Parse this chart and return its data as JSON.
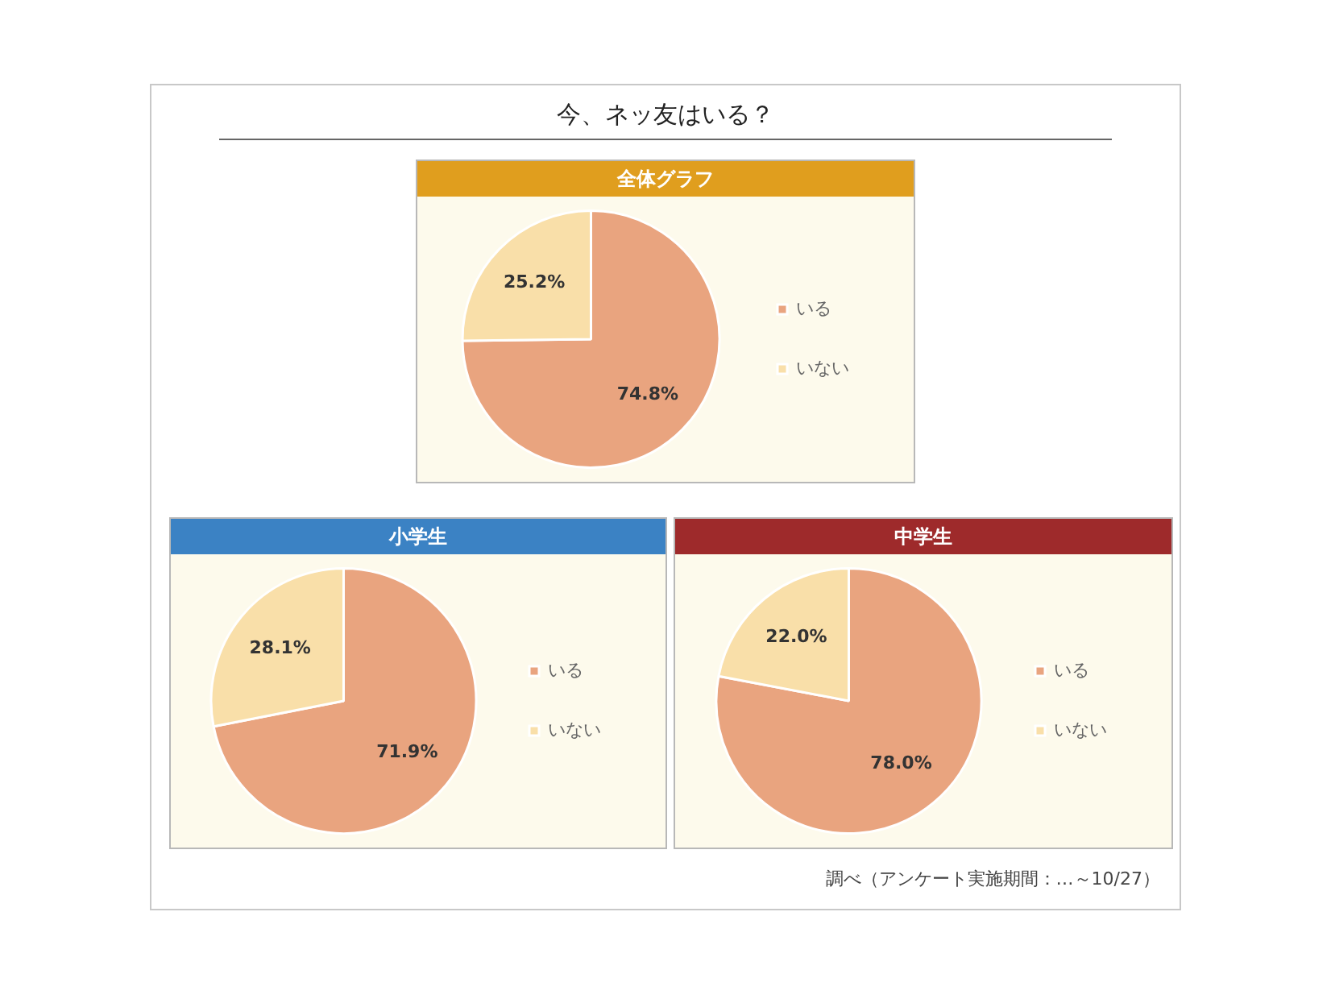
{
  "chart_data": [
    {
      "type": "pie",
      "title": "今、ネッ友はいる？",
      "subtitle": "全体グラフ",
      "categories": [
        "いる",
        "いない"
      ],
      "values": [
        74.8,
        25.2
      ],
      "value_labels": [
        "74.8%",
        "25.2%"
      ],
      "colors": [
        "#e9a47f",
        "#f9dfa9"
      ],
      "legend": "right"
    },
    {
      "type": "pie",
      "subtitle": "小学生",
      "categories": [
        "いる",
        "いない"
      ],
      "values": [
        71.9,
        28.1
      ],
      "value_labels": [
        "71.9%",
        "28.1%"
      ],
      "colors": [
        "#e9a47f",
        "#f9dfa9"
      ],
      "legend": "right"
    },
    {
      "type": "pie",
      "subtitle": "中学生",
      "categories": [
        "いる",
        "いない"
      ],
      "values": [
        78.0,
        22.0
      ],
      "value_labels": [
        "78.0%",
        "22.0%"
      ],
      "colors": [
        "#e9a47f",
        "#f9dfa9"
      ],
      "legend": "right",
      "annotations": [
        "調べ（アンケート実施期間：…～10/27）"
      ]
    }
  ]
}
